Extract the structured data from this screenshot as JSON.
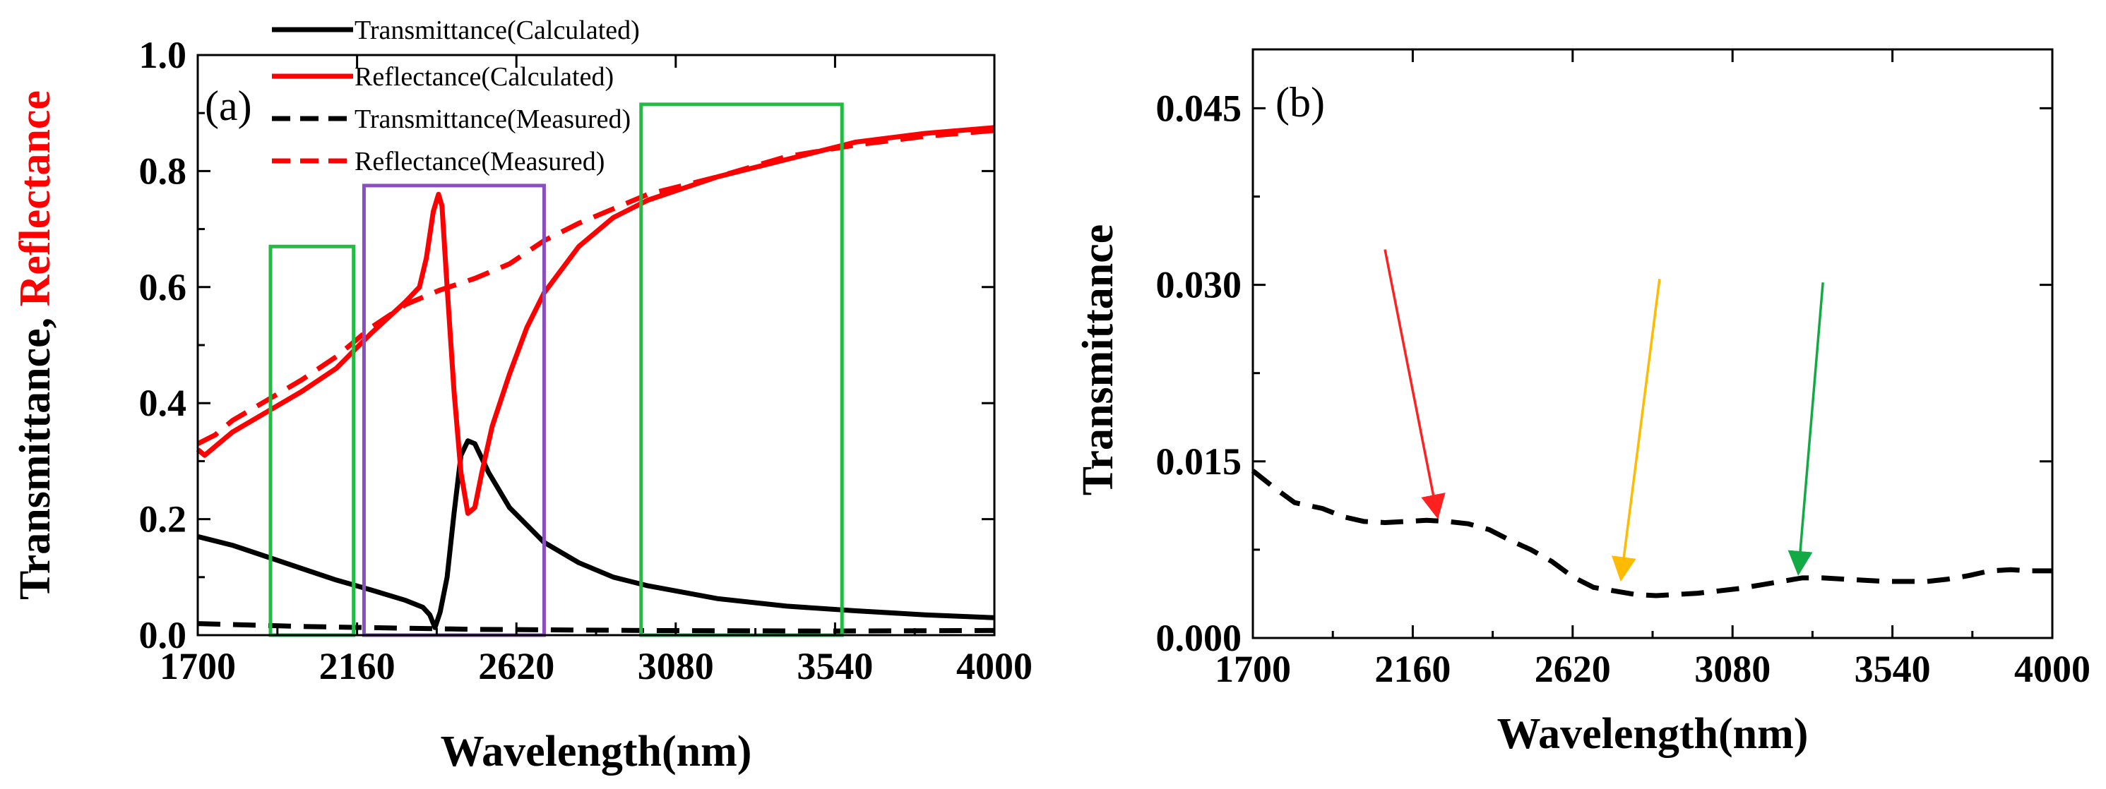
{
  "chart_data": [
    {
      "panel_label": "(a)",
      "type": "line",
      "xlabel": "Wavelength(nm)",
      "ylabel_parts": [
        "Transmittance, ",
        "Reflectance"
      ],
      "ylabel_colors": [
        "#000000",
        "#ff0000"
      ],
      "xlim": [
        1700,
        4000
      ],
      "ylim": [
        0,
        1.0
      ],
      "xticks": [
        1700,
        2160,
        2620,
        3080,
        3540,
        4000
      ],
      "xtick_labels": [
        "1700",
        "2160",
        "2620",
        "3080",
        "3540",
        "4000"
      ],
      "yticks": [
        0.0,
        0.2,
        0.4,
        0.6,
        0.8,
        1.0
      ],
      "ytick_labels": [
        "0.0",
        "0.2",
        "0.4",
        "0.6",
        "0.8",
        "1.0"
      ],
      "legend": [
        "Transmittance(Calculated)",
        "Reflectance(Calculated)",
        "Transmittance(Measured)",
        "Reflectance(Measured)"
      ],
      "series": [
        {
          "name": "Transmittance(Calculated)",
          "color": "#000000",
          "dash": "solid",
          "x": [
            1700,
            1800,
            1900,
            2000,
            2100,
            2200,
            2300,
            2350,
            2370,
            2385,
            2400,
            2420,
            2440,
            2460,
            2480,
            2500,
            2540,
            2600,
            2700,
            2800,
            2900,
            3000,
            3200,
            3400,
            3600,
            3800,
            4000
          ],
          "y": [
            0.17,
            0.155,
            0.135,
            0.115,
            0.095,
            0.078,
            0.06,
            0.048,
            0.035,
            0.013,
            0.04,
            0.1,
            0.21,
            0.31,
            0.335,
            0.33,
            0.28,
            0.22,
            0.16,
            0.125,
            0.1,
            0.085,
            0.063,
            0.05,
            0.042,
            0.035,
            0.03
          ]
        },
        {
          "name": "Reflectance(Calculated)",
          "color": "#ff0000",
          "dash": "solid",
          "x": [
            1700,
            1720,
            1750,
            1800,
            1900,
            2000,
            2100,
            2200,
            2300,
            2340,
            2360,
            2380,
            2395,
            2405,
            2420,
            2440,
            2460,
            2480,
            2500,
            2520,
            2550,
            2600,
            2650,
            2700,
            2800,
            2900,
            3000,
            3100,
            3200,
            3400,
            3600,
            3800,
            4000
          ],
          "y": [
            0.32,
            0.31,
            0.325,
            0.35,
            0.385,
            0.42,
            0.46,
            0.52,
            0.575,
            0.6,
            0.65,
            0.73,
            0.76,
            0.74,
            0.6,
            0.42,
            0.28,
            0.21,
            0.22,
            0.28,
            0.36,
            0.45,
            0.53,
            0.59,
            0.67,
            0.72,
            0.75,
            0.77,
            0.79,
            0.82,
            0.85,
            0.865,
            0.875
          ]
        },
        {
          "name": "Transmittance(Measured)",
          "color": "#000000",
          "dash": "dashed",
          "x": [
            1700,
            2000,
            2500,
            3000,
            3500,
            4000
          ],
          "y": [
            0.02,
            0.015,
            0.01,
            0.008,
            0.007,
            0.008
          ]
        },
        {
          "name": "Reflectance(Measured)",
          "color": "#ff0000",
          "dash": "dashed",
          "x": [
            1700,
            1750,
            1800,
            1900,
            2000,
            2100,
            2200,
            2300,
            2400,
            2500,
            2600,
            2700,
            2800,
            2900,
            3000,
            3200,
            3400,
            3600,
            3800,
            4000
          ],
          "y": [
            0.33,
            0.345,
            0.37,
            0.405,
            0.44,
            0.48,
            0.53,
            0.57,
            0.595,
            0.615,
            0.64,
            0.68,
            0.71,
            0.735,
            0.76,
            0.79,
            0.825,
            0.845,
            0.86,
            0.87
          ]
        }
      ],
      "boxes": [
        {
          "name": "green-box-left",
          "color": "#22bb44",
          "x0": 1910,
          "x1": 2150,
          "y0": 0.0,
          "y1": 0.67
        },
        {
          "name": "purple-box",
          "color": "#8a4fbf",
          "x0": 2180,
          "x1": 2700,
          "y0": 0.0,
          "y1": 0.775
        },
        {
          "name": "green-box-right",
          "color": "#22bb44",
          "x0": 2980,
          "x1": 3560,
          "y0": 0.0,
          "y1": 0.915
        }
      ]
    },
    {
      "panel_label": "(b)",
      "type": "line",
      "xlabel": "Wavelength(nm)",
      "ylabel": "Transmittance",
      "xlim": [
        1700,
        4000
      ],
      "ylim": [
        0,
        0.05
      ],
      "xticks": [
        1700,
        2160,
        2620,
        3080,
        3540,
        4000
      ],
      "xtick_labels": [
        "1700",
        "2160",
        "2620",
        "3080",
        "3540",
        "4000"
      ],
      "yticks": [
        0.0,
        0.015,
        0.03,
        0.045
      ],
      "ytick_labels": [
        "0.000",
        "0.015",
        "0.030",
        "0.045"
      ],
      "series": [
        {
          "name": "Transmittance(Measured)",
          "color": "#000000",
          "dash": "dashed",
          "x": [
            1700,
            1760,
            1820,
            1900,
            1960,
            2020,
            2080,
            2140,
            2200,
            2260,
            2320,
            2380,
            2440,
            2500,
            2560,
            2620,
            2680,
            2740,
            2800,
            2860,
            2920,
            2980,
            3040,
            3100,
            3160,
            3220,
            3280,
            3340,
            3400,
            3460,
            3520,
            3580,
            3640,
            3700,
            3760,
            3820,
            3880,
            3940,
            4000
          ],
          "y": [
            0.0142,
            0.0128,
            0.0115,
            0.011,
            0.0103,
            0.0099,
            0.0098,
            0.0099,
            0.01,
            0.0099,
            0.0097,
            0.0092,
            0.0083,
            0.0075,
            0.0065,
            0.0052,
            0.0043,
            0.004,
            0.0037,
            0.0036,
            0.0037,
            0.0038,
            0.004,
            0.0042,
            0.0045,
            0.0048,
            0.0051,
            0.0051,
            0.005,
            0.0049,
            0.0048,
            0.0048,
            0.0048,
            0.005,
            0.0053,
            0.0057,
            0.0058,
            0.0057,
            0.0057
          ]
        }
      ],
      "arrows": [
        {
          "name": "red-arrow",
          "color": "#ff2020",
          "from": [
            2080,
            0.033
          ],
          "to": [
            2230,
            0.0105
          ]
        },
        {
          "name": "yellow-arrow",
          "color": "#ffbb00",
          "from": [
            2870,
            0.0305
          ],
          "to": [
            2760,
            0.0052
          ]
        },
        {
          "name": "green-arrow",
          "color": "#11aa44",
          "from": [
            3340,
            0.0302
          ],
          "to": [
            3270,
            0.0057
          ]
        }
      ]
    }
  ]
}
